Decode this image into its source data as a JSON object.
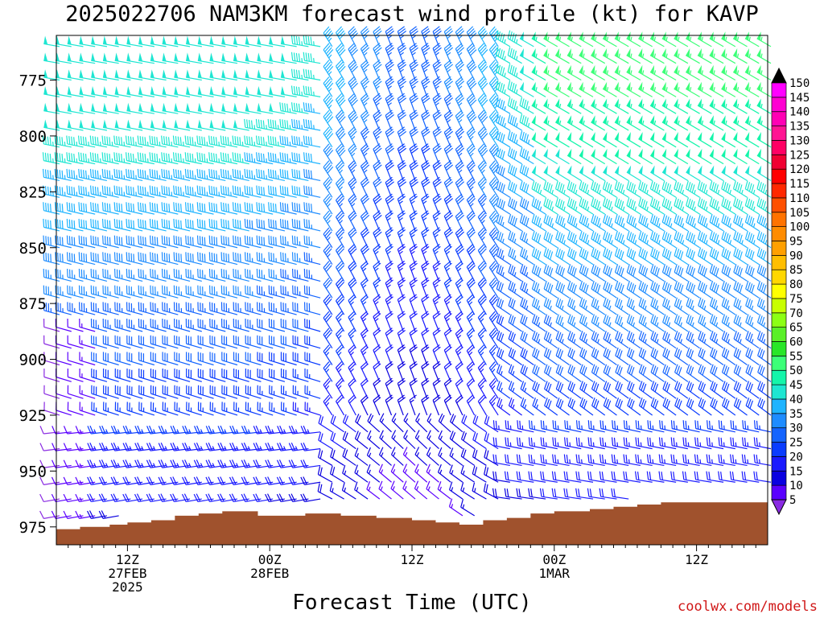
{
  "title": "2025022706 NAM3KM forecast wind profile (kt) for KAVP",
  "xlabel": "Forecast Time (UTC)",
  "credit": "coolwx.com/models",
  "chart_data": {
    "type": "wind_barbs",
    "title": "2025022706 NAM3KM forecast wind profile (kt) for KAVP",
    "xlabel": "Forecast Time (UTC)",
    "ylabel": "",
    "y_axis": {
      "ticks": [
        775,
        800,
        825,
        850,
        875,
        900,
        925,
        950,
        975
      ],
      "range": [
        983,
        755
      ],
      "units": "hPa"
    },
    "x_axis": {
      "range_hours": [
        0,
        60
      ],
      "ticks": [
        {
          "hour": 6,
          "lines": [
            "12Z",
            "27FEB",
            "2025"
          ]
        },
        {
          "hour": 18,
          "lines": [
            "00Z",
            "28FEB"
          ]
        },
        {
          "hour": 30,
          "lines": [
            "12Z"
          ]
        },
        {
          "hour": 42,
          "lines": [
            "00Z",
            "1MAR"
          ]
        },
        {
          "hour": 54,
          "lines": [
            "12Z"
          ]
        }
      ]
    },
    "terrain_pressure_hPa": [
      {
        "hour": 0,
        "p": 976
      },
      {
        "hour": 2,
        "p": 975
      },
      {
        "hour": 4.5,
        "p": 974
      },
      {
        "hour": 6,
        "p": 973
      },
      {
        "hour": 8,
        "p": 972
      },
      {
        "hour": 10,
        "p": 970
      },
      {
        "hour": 12,
        "p": 969
      },
      {
        "hour": 14,
        "p": 968
      },
      {
        "hour": 17,
        "p": 970
      },
      {
        "hour": 21,
        "p": 969
      },
      {
        "hour": 24,
        "p": 970
      },
      {
        "hour": 27,
        "p": 971
      },
      {
        "hour": 30,
        "p": 972
      },
      {
        "hour": 32,
        "p": 973
      },
      {
        "hour": 34,
        "p": 974
      },
      {
        "hour": 36,
        "p": 972
      },
      {
        "hour": 38,
        "p": 971
      },
      {
        "hour": 40,
        "p": 969
      },
      {
        "hour": 42,
        "p": 968
      },
      {
        "hour": 45,
        "p": 967
      },
      {
        "hour": 47,
        "p": 966
      },
      {
        "hour": 49,
        "p": 965
      },
      {
        "hour": 51,
        "p": 964
      },
      {
        "hour": 54,
        "p": 964
      },
      {
        "hour": 56,
        "p": 964
      },
      {
        "hour": 60,
        "p": 965
      }
    ],
    "colorbar": {
      "units": "kt",
      "levels": [
        5,
        10,
        15,
        20,
        25,
        30,
        35,
        40,
        45,
        50,
        55,
        60,
        65,
        70,
        75,
        80,
        85,
        90,
        95,
        100,
        105,
        110,
        115,
        120,
        125,
        130,
        135,
        140,
        145,
        150
      ],
      "colors": [
        "#8a2be2",
        "#5a00ff",
        "#0a00e0",
        "#1a1aff",
        "#0a3cff",
        "#1464ff",
        "#1e8cff",
        "#1eb4ff",
        "#1ee6d2",
        "#14f5aa",
        "#3cff78",
        "#28e628",
        "#5af028",
        "#8cff14",
        "#c8ff00",
        "#ffff00",
        "#ffd700",
        "#ffbe00",
        "#ffa000",
        "#ff8c00",
        "#ff7300",
        "#ff5000",
        "#ff2800",
        "#ff0000",
        "#f00032",
        "#ff0064",
        "#ff1493",
        "#ff00b4",
        "#ff00d2",
        "#ff00ff"
      ]
    },
    "barb_sampling": {
      "hours_start": 0,
      "hours_step": 1,
      "levels_hPa_start": 760,
      "levels_hPa_step": 7.5
    }
  }
}
